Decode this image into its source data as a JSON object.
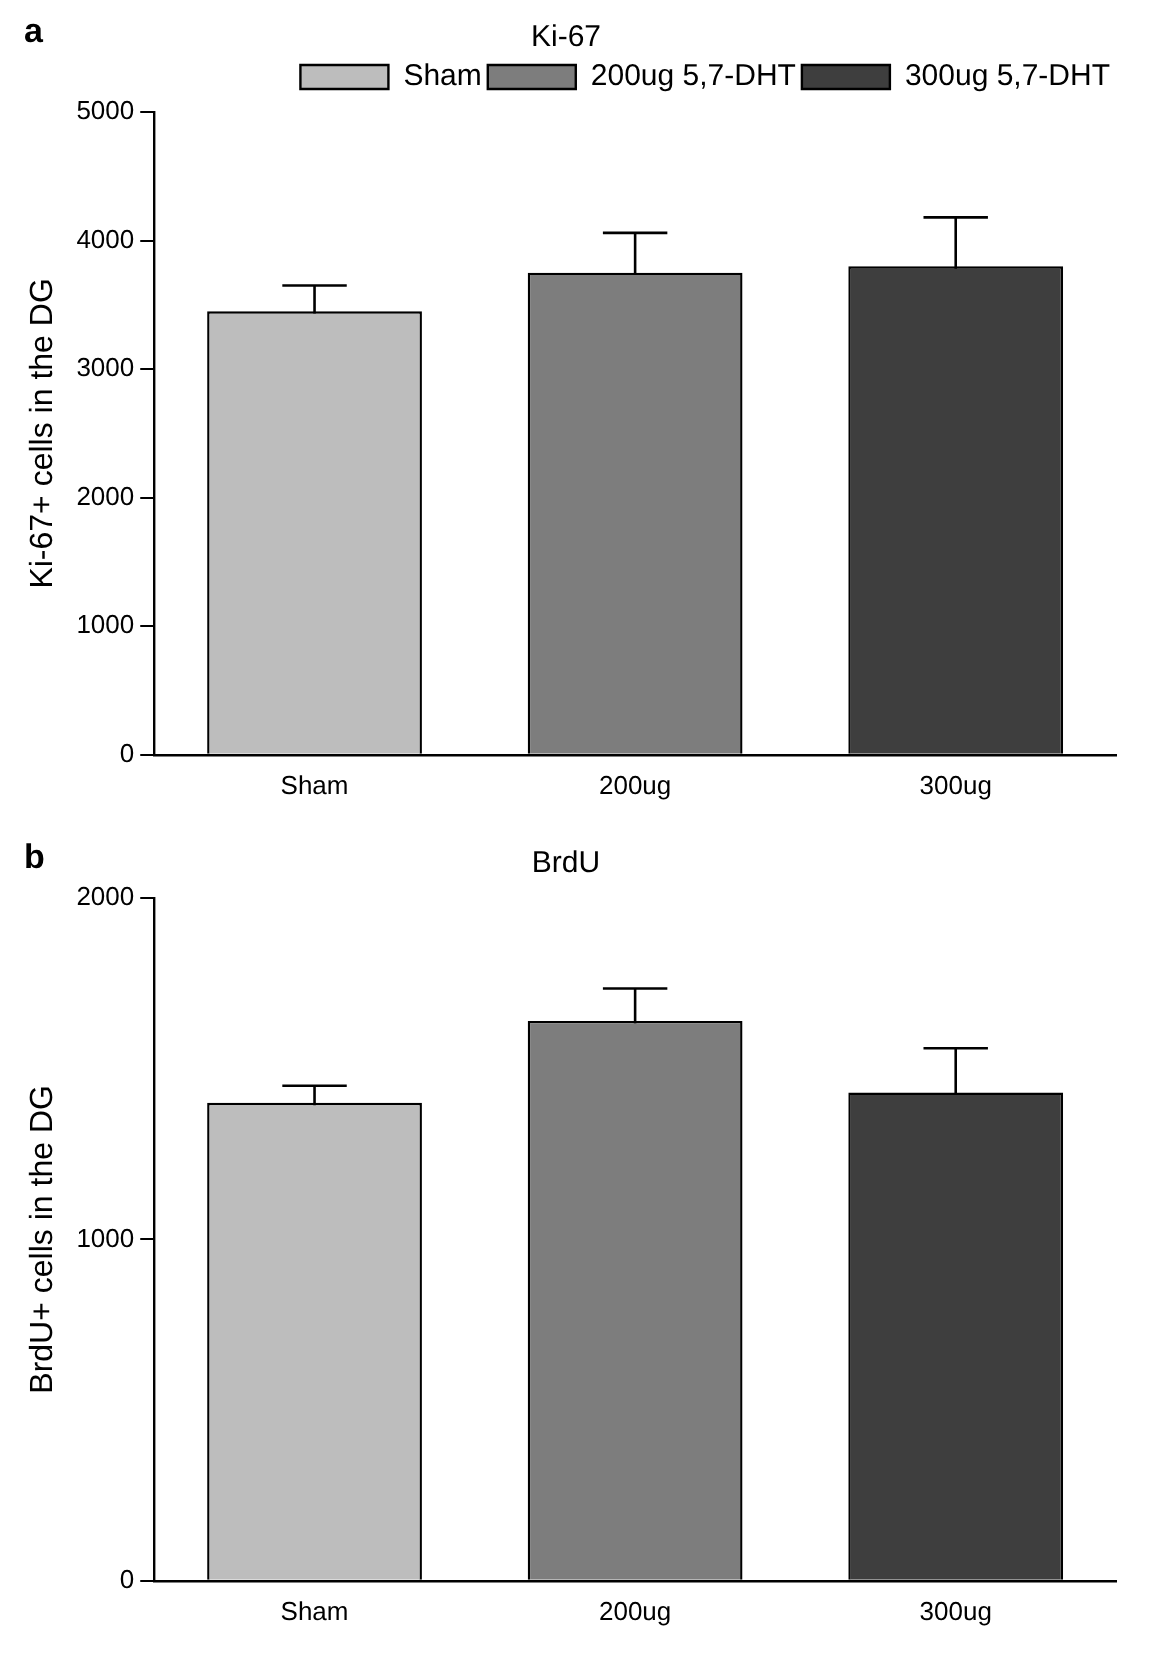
{
  "chart_data": [
    {
      "type": "bar",
      "title": "Ki-67",
      "ylabel": "Ki-67+ cells in the DG",
      "annotations": [
        "a"
      ],
      "categories": [
        "Sham",
        "200ug",
        "300ug"
      ],
      "series": [
        {
          "name": "Sham",
          "color": "#bdbdbd",
          "values": [
            3450,
            null,
            null
          ],
          "errors": [
            200,
            null,
            null
          ]
        },
        {
          "name": "200ug 5,7-DHT",
          "color": "#7d7d7d",
          "values": [
            null,
            3750,
            null
          ],
          "errors": [
            null,
            310,
            null
          ]
        },
        {
          "name": "300ug 5,7-DHT",
          "color": "#3e3e3e",
          "values": [
            null,
            null,
            3800
          ],
          "errors": [
            null,
            null,
            380
          ]
        }
      ],
      "ylim": [
        0,
        5000
      ],
      "yticks": [
        0,
        1000,
        2000,
        3000,
        4000,
        5000
      ],
      "grid": false,
      "legend": "top right"
    },
    {
      "type": "bar",
      "title": "BrdU",
      "ylabel": "BrdU+ cells in the DG",
      "annotations": [
        "b"
      ],
      "categories": [
        "Sham",
        "200ug",
        "300ug"
      ],
      "series": [
        {
          "color": "#bdbdbd",
          "values": [
            1400,
            null,
            null
          ],
          "errors": [
            50,
            null,
            null
          ]
        },
        {
          "color": "#7d7d7d",
          "values": [
            null,
            1640,
            null
          ],
          "errors": [
            null,
            95,
            null
          ]
        },
        {
          "color": "#3e3e3e",
          "values": [
            null,
            null,
            1430
          ],
          "errors": [
            null,
            null,
            130
          ]
        }
      ],
      "ylim": [
        0,
        2000
      ],
      "yticks": [
        0,
        1000,
        2000
      ],
      "grid": false,
      "legend": false
    }
  ]
}
